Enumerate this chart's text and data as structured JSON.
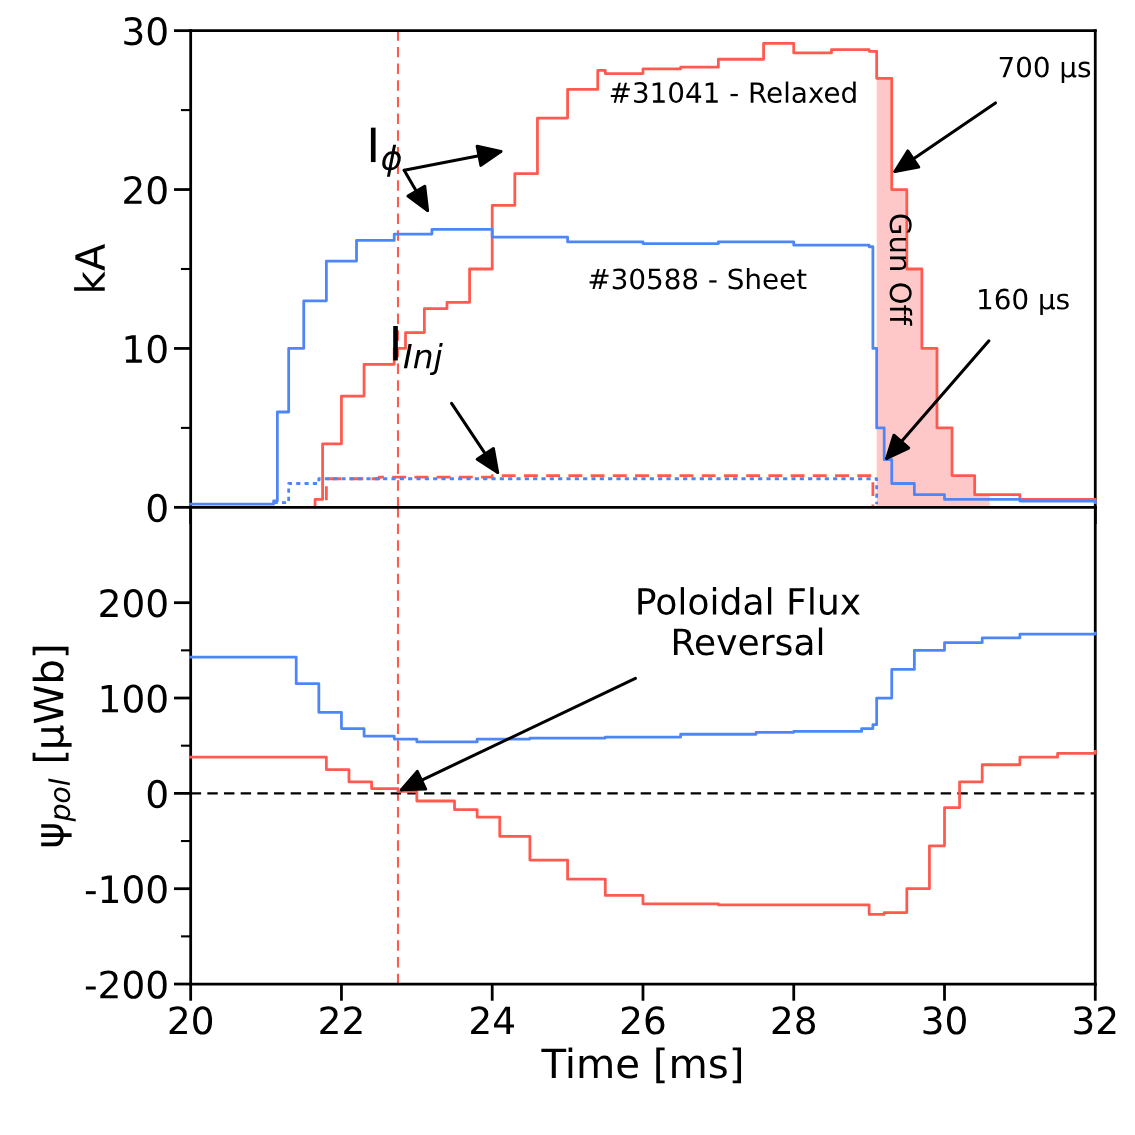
{
  "chart_data": [
    {
      "type": "step",
      "ylabel": "kA",
      "xlim": [
        20,
        32
      ],
      "ylim": [
        0,
        30
      ],
      "xticks": [
        20,
        22,
        24,
        26,
        28,
        30,
        32
      ],
      "yticks": [
        0,
        {
          "value": 5,
          "label": null
        },
        10,
        {
          "value": 15,
          "label": null
        },
        20,
        {
          "value": 25,
          "label": null
        },
        30
      ],
      "tick_labels": "y",
      "grid": false,
      "legend": false,
      "series": [
        {
          "type": "area",
          "color": "#ffc8c8",
          "x": [
            29.05,
            29.1,
            29.3,
            29.5,
            29.7,
            29.9,
            30.1,
            30.4,
            30.6
          ],
          "values": [
            0,
            27,
            20,
            15,
            10,
            5,
            2,
            0.8,
            0.6
          ]
        },
        {
          "color": "#ff5a4f",
          "x": [
            21.6,
            21.65,
            21.75,
            22.0,
            22.3,
            22.7,
            22.85,
            23.1,
            23.4,
            23.7,
            24.0,
            24.3,
            24.6,
            25.0,
            25.4,
            25.5,
            26.0,
            26.5,
            27.0,
            27.6,
            28.0,
            28.5,
            29.0,
            29.1,
            29.3,
            29.5,
            29.7,
            29.9,
            30.1,
            30.4,
            31.0,
            32.0
          ],
          "values": [
            0,
            0.5,
            4,
            7,
            9,
            10,
            11,
            12.5,
            12.9,
            15,
            19,
            21,
            24.5,
            26.3,
            27.5,
            27.3,
            27.6,
            27.7,
            28.2,
            29.2,
            28.6,
            28.8,
            28.7,
            27,
            20,
            15,
            10,
            5,
            2,
            0.8,
            0.5,
            0.4
          ]
        },
        {
          "color": "#4f86f7",
          "x": [
            20,
            21.1,
            21.15,
            21.3,
            21.5,
            21.8,
            22.2,
            22.7,
            23.2,
            24.0,
            25.0,
            26.0,
            27.0,
            28.0,
            29.0,
            29.05,
            29.1,
            29.2,
            29.3,
            29.6,
            30.0,
            31.0,
            32.0
          ],
          "values": [
            0.2,
            0.4,
            6,
            10,
            13,
            15.5,
            16.8,
            17.2,
            17.5,
            17,
            16.7,
            16.6,
            16.7,
            16.5,
            16.4,
            10,
            5,
            3,
            1.5,
            0.8,
            0.5,
            0.4,
            0.3
          ]
        },
        {
          "color": "#ff5a4f",
          "line_style": "dashed",
          "x": [
            21.6,
            21.8,
            22.5,
            24.0,
            26.0,
            28.0,
            29.0,
            29.05
          ],
          "values": [
            0,
            1.8,
            1.9,
            2.0,
            2.0,
            2.0,
            2.0,
            0
          ]
        },
        {
          "color": "#4f86f7",
          "line_style": "dotted",
          "x": [
            21.1,
            21.3,
            21.7,
            22.5,
            24.0,
            26.0,
            28.0,
            29.0,
            29.1
          ],
          "values": [
            0.3,
            1.5,
            1.8,
            1.8,
            1.8,
            1.8,
            1.8,
            1.8,
            0.2
          ]
        }
      ],
      "ref_lines": [
        {
          "axis": "x",
          "value": 22.75,
          "color": "#ff5a4f",
          "line_style": "dashed"
        }
      ],
      "annotations": [
        "I$_{ϕ}$",
        "#31041 - Relaxed",
        "#30588 - Sheet",
        {
          "text": "I$_{Inj}$",
          "x": 24.1,
          "y": 2.0
        },
        {
          "text": "700 µs",
          "x": 29.3,
          "y": 21
        },
        {
          "text": "160 µs",
          "x": 29.2,
          "y": 2.9
        },
        "Gun Off"
      ]
    },
    {
      "type": "step",
      "xlabel": "Time [ms]",
      "ylabel": "ψ$_{pol}$ [µWb]",
      "xlim": [
        20,
        32
      ],
      "ylim": [
        -200,
        300
      ],
      "xticks": [
        20,
        22,
        24,
        26,
        28,
        30,
        32
      ],
      "yticks": [
        -200,
        {
          "value": -150,
          "label": null
        },
        -100,
        {
          "value": -50,
          "label": null
        },
        0,
        {
          "value": 50,
          "label": null
        },
        100,
        {
          "value": 150,
          "label": null
        },
        200
      ],
      "grid": false,
      "legend": false,
      "series": [
        {
          "color": "#4f86f7",
          "x": [
            20,
            21.15,
            21.4,
            21.7,
            22.0,
            22.3,
            22.7,
            23.0,
            23.4,
            23.8,
            24.5,
            25.5,
            26.5,
            27.5,
            28.0,
            28.9,
            29.05,
            29.1,
            29.3,
            29.6,
            30.0,
            30.5,
            31.0,
            32.0
          ],
          "values": [
            143,
            143,
            115,
            85,
            68,
            60,
            57,
            54,
            54,
            57,
            58,
            59,
            62,
            64,
            65,
            68,
            72,
            100,
            130,
            150,
            158,
            163,
            167,
            168
          ]
        },
        {
          "color": "#ff5a4f",
          "x": [
            20,
            21.5,
            21.8,
            22.1,
            22.4,
            22.75,
            23.0,
            23.5,
            23.8,
            24.1,
            24.5,
            25.0,
            25.5,
            26.0,
            27.0,
            28.0,
            28.7,
            29.0,
            29.2,
            29.5,
            29.8,
            30.0,
            30.2,
            30.5,
            31.0,
            31.5,
            32.0
          ],
          "values": [
            38,
            38,
            25,
            12,
            5,
            2,
            -8,
            -17,
            -25,
            -45,
            -70,
            -90,
            -107,
            -116,
            -117,
            -117,
            -117,
            -127,
            -125,
            -100,
            -55,
            -15,
            12,
            30,
            38,
            42,
            44
          ]
        }
      ],
      "ref_lines": [
        {
          "axis": "x",
          "value": 22.75,
          "color": "#ff5a4f",
          "line_style": "dashed"
        },
        {
          "axis": "y",
          "value": 0,
          "color": "#000000",
          "line_style": "dashed"
        }
      ],
      "annotations": [
        {
          "text": "Poloidal Flux\nReversal",
          "x": 22.75,
          "y": 2
        }
      ]
    }
  ]
}
